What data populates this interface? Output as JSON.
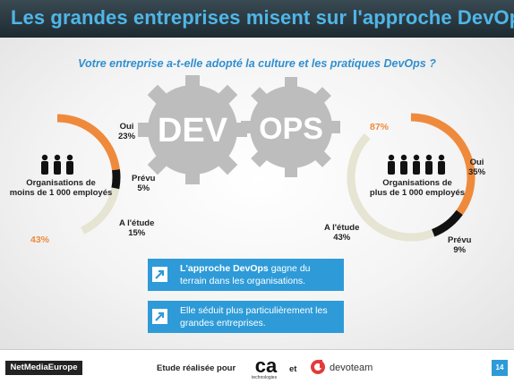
{
  "header": {
    "title": "Les grandes entreprises misent sur l'approche DevOps"
  },
  "question": "Votre entreprise a-t-elle adopté la culture et les pratiques DevOps ?",
  "gears": {
    "left": "DEV",
    "right": "OPS"
  },
  "colors": {
    "oui": "#ef8a3c",
    "prevu": "#111111",
    "etude": "#e6e4d2",
    "accent": "#2e9bd8"
  },
  "small_org": {
    "title_line1": "Organisations de",
    "title_line2": "moins de 1 000 employés",
    "oui_label": "Oui",
    "oui_pct": "23%",
    "prevu_label": "Prévu",
    "prevu_pct": "5%",
    "etude_label": "A l'étude",
    "etude_pct": "15%",
    "total_pct": "43%"
  },
  "large_org": {
    "title_line1": "Organisations de",
    "title_line2": "plus de 1 000 employés",
    "oui_label": "Oui",
    "oui_pct": "35%",
    "prevu_label": "Prévu",
    "prevu_pct": "9%",
    "etude_label": "A l'étude",
    "etude_pct": "43%",
    "total_pct": "87%"
  },
  "chart_data": [
    {
      "type": "pie",
      "categories": [
        "Oui",
        "Prévu",
        "A l'étude"
      ],
      "values": [
        23,
        5,
        15
      ],
      "total": 43
    },
    {
      "type": "pie",
      "categories": [
        "Oui",
        "Prévu",
        "A l'étude"
      ],
      "values": [
        35,
        9,
        43
      ],
      "total": 87
    }
  ],
  "callouts": [
    {
      "bold": "L'approche DevOps",
      "rest": " gagne du terrain dans les organisations."
    },
    {
      "bold": "",
      "rest": "Elle séduit plus particulièrement les grandes entreprises."
    }
  ],
  "footer": {
    "brand": "NetMediaEurope",
    "study": "Etude réalisée pour",
    "ca_logo": "ca",
    "ca_sub": "technologies",
    "et": "et",
    "devoteam": "devoteam",
    "page": "14"
  }
}
